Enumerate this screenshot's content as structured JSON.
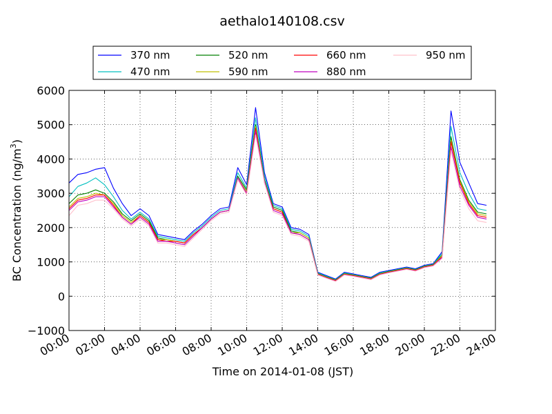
{
  "chart_data": {
    "type": "line",
    "title": "aethalo140108.csv",
    "xlabel": "Time on 2014-01-08 (JST)",
    "ylabel": "BC Concentration (ng/m",
    "ylabel_sup": "3",
    "ylabel_suffix": ")",
    "xlim": [
      "00:00",
      "24:00"
    ],
    "ylim": [
      -1000,
      6000
    ],
    "x_ticks": [
      "00:00",
      "02:00",
      "04:00",
      "06:00",
      "08:00",
      "10:00",
      "12:00",
      "14:00",
      "16:00",
      "18:00",
      "20:00",
      "22:00",
      "24:00"
    ],
    "y_ticks": [
      -1000,
      0,
      1000,
      2000,
      3000,
      4000,
      5000,
      6000
    ],
    "y_tick_labels": [
      "−1000",
      "0",
      "1000",
      "2000",
      "3000",
      "4000",
      "5000",
      "6000"
    ],
    "grid": true,
    "legend_position": "top-center",
    "x": [
      "00:00",
      "00:30",
      "01:00",
      "01:30",
      "02:00",
      "02:30",
      "03:00",
      "03:30",
      "04:00",
      "04:30",
      "05:00",
      "05:30",
      "06:00",
      "06:30",
      "07:00",
      "07:30",
      "08:00",
      "08:30",
      "09:00",
      "09:30",
      "10:00",
      "10:30",
      "11:00",
      "11:30",
      "12:00",
      "12:30",
      "13:00",
      "13:30",
      "14:00",
      "14:30",
      "15:00",
      "15:30",
      "16:00",
      "16:30",
      "17:00",
      "17:30",
      "18:00",
      "18:30",
      "19:00",
      "19:30",
      "20:00",
      "20:30",
      "21:00",
      "21:30",
      "22:00",
      "22:30",
      "23:00",
      "23:30"
    ],
    "series": [
      {
        "name": "370 nm",
        "color": "#0000ff",
        "values": [
          3300,
          3550,
          3600,
          3700,
          3750,
          3150,
          2700,
          2350,
          2550,
          2350,
          1800,
          1750,
          1700,
          1650,
          1900,
          2100,
          2350,
          2550,
          2600,
          3750,
          3250,
          5500,
          3600,
          2700,
          2600,
          2000,
          1950,
          1800,
          700,
          600,
          500,
          700,
          650,
          600,
          550,
          700,
          750,
          800,
          850,
          800,
          900,
          950,
          1300,
          5400,
          3900,
          3300,
          2700,
          2650
        ]
      },
      {
        "name": "470 nm",
        "color": "#00bfbf",
        "values": [
          2900,
          3200,
          3300,
          3450,
          3250,
          2900,
          2500,
          2250,
          2450,
          2250,
          1750,
          1700,
          1650,
          1600,
          1850,
          2050,
          2300,
          2500,
          2550,
          3600,
          3150,
          5200,
          3500,
          2650,
          2550,
          1950,
          1900,
          1750,
          680,
          580,
          480,
          680,
          630,
          580,
          530,
          680,
          730,
          780,
          830,
          780,
          880,
          930,
          1250,
          4950,
          3600,
          3000,
          2550,
          2500
        ]
      },
      {
        "name": "520 nm",
        "color": "#007f00",
        "values": [
          2700,
          2950,
          3000,
          3100,
          3000,
          2750,
          2400,
          2200,
          2400,
          2200,
          1700,
          1650,
          1600,
          1550,
          1800,
          2000,
          2250,
          2450,
          2500,
          3500,
          3100,
          5000,
          3400,
          2600,
          2500,
          1900,
          1850,
          1700,
          660,
          560,
          470,
          660,
          620,
          570,
          520,
          660,
          720,
          770,
          820,
          770,
          870,
          920,
          1200,
          4650,
          3400,
          2800,
          2450,
          2400
        ]
      },
      {
        "name": "590 nm",
        "color": "#bfbf00",
        "values": [
          2600,
          2850,
          2900,
          3000,
          2950,
          2700,
          2350,
          2150,
          2350,
          2150,
          1650,
          1650,
          1600,
          1550,
          1800,
          2000,
          2250,
          2450,
          2500,
          3450,
          3050,
          4950,
          3350,
          2550,
          2450,
          1850,
          1850,
          1700,
          650,
          550,
          460,
          650,
          610,
          560,
          510,
          650,
          710,
          760,
          810,
          760,
          860,
          910,
          1180,
          4550,
          3350,
          2750,
          2400,
          2350
        ]
      },
      {
        "name": "660 nm",
        "color": "#ff0000",
        "values": [
          2550,
          2800,
          2850,
          2950,
          2950,
          2650,
          2300,
          2100,
          2350,
          2150,
          1650,
          1600,
          1600,
          1550,
          1800,
          2000,
          2250,
          2450,
          2500,
          3400,
          3000,
          4900,
          3300,
          2550,
          2450,
          1850,
          1800,
          1650,
          640,
          540,
          450,
          640,
          600,
          550,
          500,
          640,
          700,
          750,
          800,
          750,
          850,
          900,
          1150,
          4500,
          3300,
          2700,
          2350,
          2300
        ]
      },
      {
        "name": "880 nm",
        "color": "#bf00bf",
        "values": [
          2500,
          2750,
          2800,
          2900,
          2900,
          2600,
          2300,
          2100,
          2300,
          2100,
          1600,
          1600,
          1550,
          1500,
          1750,
          2000,
          2250,
          2450,
          2500,
          3450,
          3000,
          4800,
          3350,
          2500,
          2400,
          1850,
          1800,
          1650,
          630,
          530,
          440,
          630,
          590,
          540,
          490,
          630,
          690,
          740,
          790,
          740,
          840,
          890,
          1130,
          4350,
          3200,
          2650,
          2300,
          2250
        ]
      },
      {
        "name": "950 nm",
        "color": "#ffc0cb",
        "values": [
          2350,
          2650,
          2700,
          2800,
          2800,
          2550,
          2250,
          2050,
          2250,
          2050,
          1550,
          1550,
          1500,
          1450,
          1700,
          1950,
          2200,
          2400,
          2450,
          3400,
          2950,
          4700,
          3300,
          2450,
          2350,
          1800,
          1750,
          1600,
          620,
          520,
          430,
          620,
          580,
          530,
          480,
          620,
          680,
          730,
          780,
          730,
          830,
          880,
          1100,
          4250,
          3100,
          2550,
          2200,
          2150
        ]
      }
    ]
  }
}
